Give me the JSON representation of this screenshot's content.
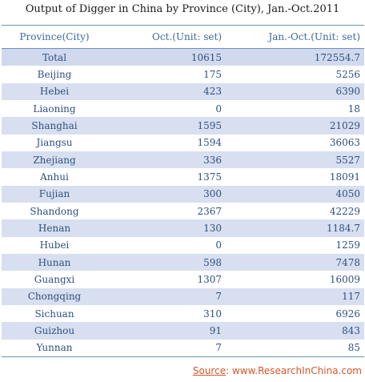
{
  "chart_data": {
    "type": "table",
    "title": "Output of Digger in China by Province (City), Jan.-Oct.2011",
    "columns": [
      "Province(City)",
      "Oct.(Unit: set)",
      "Jan.-Oct.(Unit: set)"
    ],
    "rows": [
      [
        "Total",
        "10615",
        "172554.7"
      ],
      [
        "Beijing",
        "175",
        "5256"
      ],
      [
        "Hebei",
        "423",
        "6390"
      ],
      [
        "Liaoning",
        "0",
        "18"
      ],
      [
        "Shanghai",
        "1595",
        "21029"
      ],
      [
        "Jiangsu",
        "1594",
        "36063"
      ],
      [
        "Zhejiang",
        "336",
        "5527"
      ],
      [
        "Anhui",
        "1375",
        "18091"
      ],
      [
        "Fujian",
        "300",
        "4050"
      ],
      [
        "Shandong",
        "2367",
        "42229"
      ],
      [
        "Henan",
        "130",
        "1184.7"
      ],
      [
        "Hubei",
        "0",
        "1259"
      ],
      [
        "Hunan",
        "598",
        "7478"
      ],
      [
        "Guangxi",
        "1307",
        "16009"
      ],
      [
        "Chongqing",
        "7",
        "117"
      ],
      [
        "Sichuan",
        "310",
        "6926"
      ],
      [
        "Guizhou",
        "91",
        "843"
      ],
      [
        "Yunnan",
        "7",
        "85"
      ]
    ]
  },
  "source": {
    "label": "Source",
    "text": ":  www.ResearchInChina.com"
  },
  "colors": {
    "shaded_row": "#d7dff0",
    "text": "#2f5080",
    "source": "#d2572b"
  }
}
